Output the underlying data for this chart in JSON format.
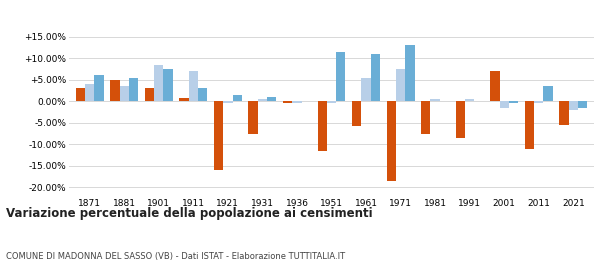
{
  "years": [
    1871,
    1881,
    1901,
    1911,
    1921,
    1931,
    1936,
    1951,
    1961,
    1971,
    1981,
    1991,
    2001,
    2011,
    2021
  ],
  "madonna": [
    3.0,
    5.0,
    3.0,
    0.8,
    -16.0,
    -7.5,
    -0.5,
    -11.5,
    -5.8,
    -18.5,
    -7.5,
    -8.5,
    7.0,
    -11.0,
    -5.5
  ],
  "provincia": [
    4.0,
    3.5,
    8.5,
    7.0,
    -0.5,
    0.5,
    -0.5,
    -0.5,
    5.5,
    7.5,
    0.5,
    0.5,
    -1.5,
    -0.5,
    -2.0
  ],
  "piemonte": [
    6.2,
    5.5,
    7.5,
    3.0,
    1.5,
    1.0,
    0.0,
    11.5,
    11.0,
    13.0,
    0.0,
    0.0,
    -0.5,
    3.5,
    -1.5
  ],
  "color_madonna": "#d4500a",
  "color_provincia": "#b8cfe8",
  "color_piemonte": "#6aaed6",
  "title": "Variazione percentuale della popolazione ai censimenti",
  "subtitle": "COMUNE DI MADONNA DEL SASSO (VB) - Dati ISTAT - Elaborazione TUTTITALIA.IT",
  "ylim": [
    -22,
    17
  ],
  "yticks": [
    -20.0,
    -15.0,
    -10.0,
    -5.0,
    0.0,
    5.0,
    10.0,
    15.0
  ],
  "bar_width": 0.27,
  "background": "#ffffff",
  "grid_color": "#d8d8d8"
}
